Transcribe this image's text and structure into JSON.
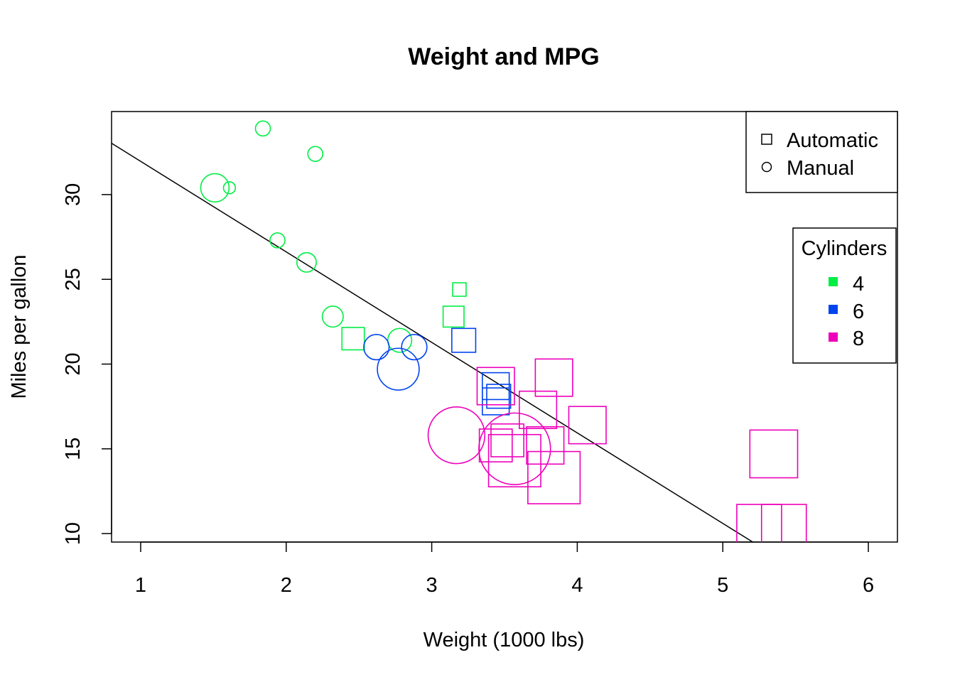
{
  "chart_data": {
    "type": "scatter",
    "title": "Weight and MPG",
    "xlabel": "Weight (1000 lbs)",
    "ylabel": "Miles per gallon",
    "xlim": [
      0.8,
      6.2
    ],
    "ylim": [
      9.5,
      34.9
    ],
    "x_ticks": [
      "1",
      "2",
      "3",
      "4",
      "5",
      "6"
    ],
    "y_ticks": [
      "10",
      "15",
      "20",
      "25",
      "30"
    ],
    "grid": false,
    "regression_line": {
      "slope": -5.34,
      "intercept": 37.3
    },
    "shape_legend": {
      "placement": "top-right",
      "items": [
        {
          "label": "Automatic",
          "shape": "square"
        },
        {
          "label": "Manual",
          "shape": "circle"
        }
      ]
    },
    "color_legend": {
      "title": "Cylinders",
      "placement": "right",
      "items": [
        {
          "label": "4",
          "color": "#00ee44"
        },
        {
          "label": "6",
          "color": "#0044ee"
        },
        {
          "label": "8",
          "color": "#ee00bb"
        }
      ]
    },
    "colors": {
      "4": "#00ee44",
      "6": "#0044ee",
      "8": "#ee00bb"
    },
    "points": [
      {
        "x": 1.84,
        "y": 33.9,
        "cyl": "4",
        "trans": "Manual",
        "size": 1.0
      },
      {
        "x": 2.2,
        "y": 32.4,
        "cyl": "4",
        "trans": "Manual",
        "size": 1.0
      },
      {
        "x": 1.51,
        "y": 30.4,
        "cyl": "4",
        "trans": "Manual",
        "size": 1.9
      },
      {
        "x": 1.61,
        "y": 30.4,
        "cyl": "4",
        "trans": "Manual",
        "size": 0.8
      },
      {
        "x": 1.94,
        "y": 27.3,
        "cyl": "4",
        "trans": "Manual",
        "size": 1.0
      },
      {
        "x": 2.14,
        "y": 26.0,
        "cyl": "4",
        "trans": "Manual",
        "size": 1.3
      },
      {
        "x": 2.32,
        "y": 22.8,
        "cyl": "4",
        "trans": "Manual",
        "size": 1.4
      },
      {
        "x": 2.78,
        "y": 21.4,
        "cyl": "4",
        "trans": "Manual",
        "size": 1.6
      },
      {
        "x": 3.19,
        "y": 24.4,
        "cyl": "4",
        "trans": "Automatic",
        "size": 0.9
      },
      {
        "x": 3.15,
        "y": 22.8,
        "cyl": "4",
        "trans": "Automatic",
        "size": 1.4
      },
      {
        "x": 2.46,
        "y": 21.5,
        "cyl": "4",
        "trans": "Automatic",
        "size": 1.5
      },
      {
        "x": 2.62,
        "y": 21.0,
        "cyl": "6",
        "trans": "Manual",
        "size": 1.7
      },
      {
        "x": 2.88,
        "y": 21.0,
        "cyl": "6",
        "trans": "Manual",
        "size": 1.7
      },
      {
        "x": 2.77,
        "y": 19.7,
        "cyl": "6",
        "trans": "Manual",
        "size": 2.8
      },
      {
        "x": 3.22,
        "y": 21.4,
        "cyl": "6",
        "trans": "Automatic",
        "size": 1.6
      },
      {
        "x": 3.44,
        "y": 18.7,
        "cyl": "6",
        "trans": "Automatic",
        "size": 1.8
      },
      {
        "x": 3.46,
        "y": 18.1,
        "cyl": "6",
        "trans": "Automatic",
        "size": 1.6
      },
      {
        "x": 3.44,
        "y": 17.8,
        "cyl": "6",
        "trans": "Automatic",
        "size": 1.8
      },
      {
        "x": 3.44,
        "y": 18.7,
        "cyl": "8",
        "trans": "Automatic",
        "size": 2.5
      },
      {
        "x": 3.84,
        "y": 19.2,
        "cyl": "8",
        "trans": "Automatic",
        "size": 2.5
      },
      {
        "x": 3.73,
        "y": 17.3,
        "cyl": "8",
        "trans": "Automatic",
        "size": 2.5
      },
      {
        "x": 4.07,
        "y": 16.4,
        "cyl": "8",
        "trans": "Automatic",
        "size": 2.5
      },
      {
        "x": 3.52,
        "y": 15.5,
        "cyl": "8",
        "trans": "Automatic",
        "size": 2.2
      },
      {
        "x": 3.78,
        "y": 15.2,
        "cyl": "8",
        "trans": "Automatic",
        "size": 2.5
      },
      {
        "x": 3.44,
        "y": 15.2,
        "cyl": "8",
        "trans": "Automatic",
        "size": 2.2
      },
      {
        "x": 3.57,
        "y": 14.3,
        "cyl": "8",
        "trans": "Automatic",
        "size": 3.5
      },
      {
        "x": 3.84,
        "y": 13.3,
        "cyl": "8",
        "trans": "Automatic",
        "size": 3.5
      },
      {
        "x": 5.25,
        "y": 10.4,
        "cyl": "8",
        "trans": "Automatic",
        "size": 3.0
      },
      {
        "x": 5.42,
        "y": 10.4,
        "cyl": "8",
        "trans": "Automatic",
        "size": 3.0
      },
      {
        "x": 5.35,
        "y": 14.7,
        "cyl": "8",
        "trans": "Automatic",
        "size": 3.2
      },
      {
        "x": 3.17,
        "y": 15.8,
        "cyl": "8",
        "trans": "Manual",
        "size": 3.8
      },
      {
        "x": 3.57,
        "y": 15.0,
        "cyl": "8",
        "trans": "Manual",
        "size": 4.8
      }
    ]
  }
}
